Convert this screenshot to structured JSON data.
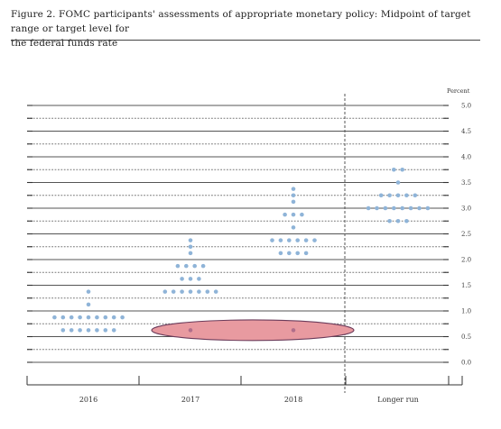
{
  "figure": {
    "title_line1": "Figure 2.  FOMC participants' assessments of appropriate monetary policy: Midpoint of target range or target level for",
    "title_line2": "the federal funds rate"
  },
  "chart_data": {
    "type": "scatter",
    "subtype": "dot-plot",
    "title": "Figure 2.  FOMC participants' assessments of appropriate monetary policy: Midpoint of target range or target level for the federal funds rate",
    "unit_label": "Percent",
    "ylim": [
      0.0,
      5.0
    ],
    "y_ticks": [
      "5.0",
      "4.5",
      "4.0",
      "3.5",
      "3.0",
      "2.5",
      "2.0",
      "1.5",
      "1.0",
      "0.5",
      "0.0"
    ],
    "categories": [
      "2016",
      "2017",
      "2018",
      "Longer run"
    ],
    "grid": true,
    "dot_color": "#8fb4d8",
    "columns": [
      {
        "category": "2016",
        "dots": [
          {
            "y": 1.375,
            "n": 1
          },
          {
            "y": 1.125,
            "n": 1
          },
          {
            "y": 0.875,
            "n": 9
          },
          {
            "y": 0.625,
            "n": 7
          }
        ]
      },
      {
        "category": "2017",
        "dots": [
          {
            "y": 2.375,
            "n": 1
          },
          {
            "y": 2.25,
            "n": 1
          },
          {
            "y": 2.125,
            "n": 1
          },
          {
            "y": 1.875,
            "n": 4
          },
          {
            "y": 1.625,
            "n": 3
          },
          {
            "y": 1.375,
            "n": 7
          },
          {
            "y": 0.625,
            "n": 1
          }
        ]
      },
      {
        "category": "2018",
        "dots": [
          {
            "y": 3.375,
            "n": 1
          },
          {
            "y": 3.25,
            "n": 1
          },
          {
            "y": 3.125,
            "n": 1
          },
          {
            "y": 2.875,
            "n": 3
          },
          {
            "y": 2.625,
            "n": 1
          },
          {
            "y": 2.375,
            "n": 6
          },
          {
            "y": 2.125,
            "n": 4
          },
          {
            "y": 0.625,
            "n": 1
          }
        ]
      },
      {
        "category": "Longer run",
        "dots": [
          {
            "y": 3.75,
            "n": 2
          },
          {
            "y": 3.5,
            "n": 1
          },
          {
            "y": 3.25,
            "n": 5
          },
          {
            "y": 3.0,
            "n": 8
          },
          {
            "y": 2.75,
            "n": 3
          }
        ]
      }
    ],
    "highlight": {
      "shape": "ellipse",
      "fill": "#e89aa0",
      "stroke": "#6b3b5a",
      "spans": [
        "2017",
        "2018"
      ],
      "center_y": 0.625,
      "half_height_y": 0.2
    }
  }
}
